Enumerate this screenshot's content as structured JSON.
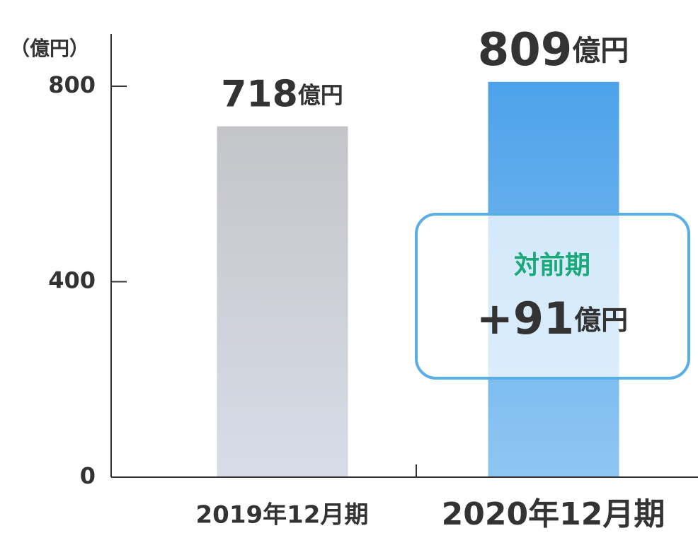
{
  "chart_data": {
    "type": "bar",
    "y_label": "（億円）",
    "categories": [
      "2019年12月期",
      "2020年12月期"
    ],
    "values": [
      718,
      809
    ],
    "value_labels": [
      "718億円",
      "809億円"
    ],
    "colors": [
      "#c6c7cb",
      "#4fa4ea"
    ],
    "ylim": [
      0,
      800
    ],
    "yticks": [
      0,
      400,
      800
    ],
    "annotation": {
      "title": "対前期",
      "text": "+91億円"
    }
  }
}
